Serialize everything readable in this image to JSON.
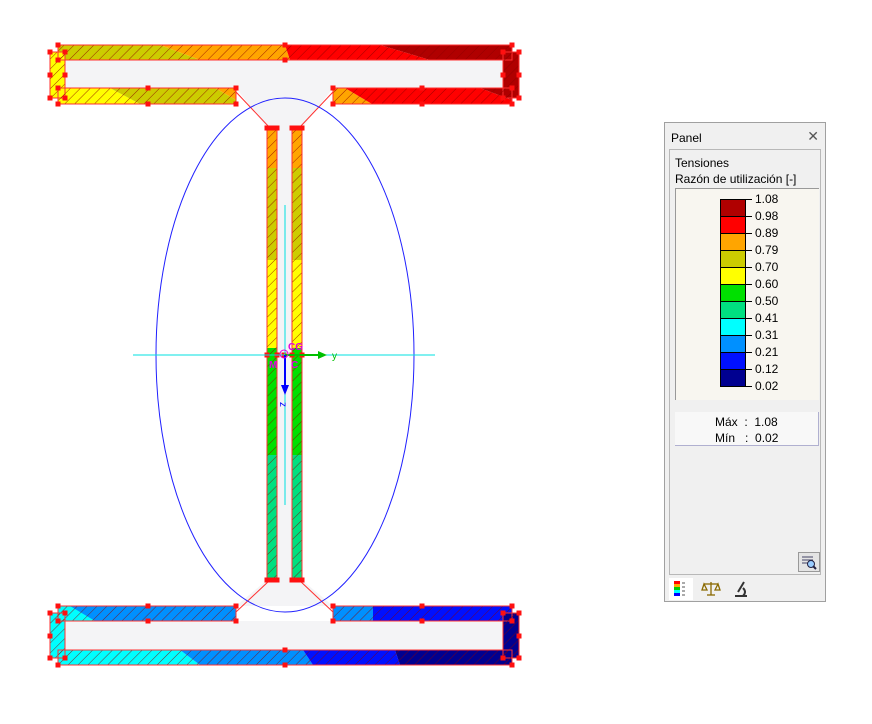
{
  "diagram": {
    "labels": {
      "cg": "CG",
      "m": "M",
      "c": "C",
      "y_axis": "y",
      "z_axis": "z"
    },
    "colors": {
      "hatch": "#8b0000",
      "outline": "#ff2020",
      "ellipse": "#2020ff",
      "axis_lines": "#00e0e0",
      "y_arrow": "#00c000",
      "z_arrow": "#0000ff",
      "labels": "#e000e0",
      "interior": "#f4f4f6"
    }
  },
  "panel": {
    "title": "Panel",
    "close_icon": "close-icon",
    "heading": "Tensiones",
    "subheading": "Razón de utilización [-]",
    "scale": {
      "values": [
        "1.08",
        "0.98",
        "0.89",
        "0.79",
        "0.70",
        "0.60",
        "0.50",
        "0.41",
        "0.31",
        "0.21",
        "0.12",
        "0.02"
      ],
      "colors": [
        "#b00000",
        "#ff0000",
        "#ffa500",
        "#cccc00",
        "#ffff00",
        "#00e000",
        "#00e080",
        "#00ffff",
        "#0090ff",
        "#0010ff",
        "#000090"
      ]
    },
    "max_label": "Máx",
    "max_value": "1.08",
    "min_label": "Mín",
    "min_value": "0.02",
    "separator": ":",
    "tabs": [
      {
        "icon": "color-scale-icon"
      },
      {
        "icon": "balance-icon"
      },
      {
        "icon": "microscope-icon"
      }
    ],
    "zoom_button_icon": "zoom-search-icon"
  }
}
